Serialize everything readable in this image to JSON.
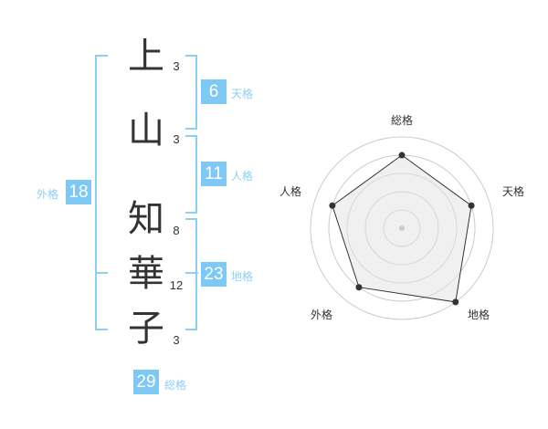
{
  "name": {
    "characters": [
      {
        "char": "上",
        "strokes": "3"
      },
      {
        "char": "山",
        "strokes": "3"
      },
      {
        "char": "知",
        "strokes": "8"
      },
      {
        "char": "華",
        "strokes": "12"
      },
      {
        "char": "子",
        "strokes": "3"
      }
    ]
  },
  "kaku": {
    "tenkaku": {
      "label": "天格",
      "value": "6"
    },
    "jinkaku": {
      "label": "人格",
      "value": "11"
    },
    "chikaku": {
      "label": "地格",
      "value": "23"
    },
    "gaikaku": {
      "label": "外格",
      "value": "18"
    },
    "soukaku": {
      "label": "総格",
      "value": "29"
    }
  },
  "colors": {
    "accent": "#7dc8f5",
    "label": "#8ccff5",
    "fill": "#f0f0f0",
    "ring": "#cccccc"
  },
  "chart_data": {
    "type": "radar",
    "axes": [
      "総格",
      "天格",
      "地格",
      "外格",
      "人格"
    ],
    "values": [
      4,
      4,
      5,
      4,
      4
    ],
    "range": [
      0,
      5
    ],
    "rings": 5
  }
}
